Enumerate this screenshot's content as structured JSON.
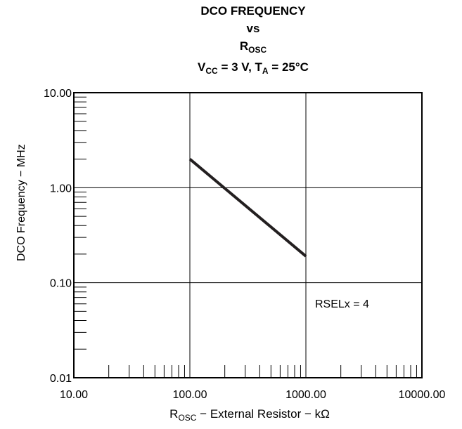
{
  "title": {
    "line1": "DCO FREQUENCY",
    "line2": "vs",
    "line3_main": "R",
    "line3_sub": "OSC",
    "line4_a": "V",
    "line4_a_sub": "CC",
    "line4_b": " = 3 V, T",
    "line4_b_sub": "A",
    "line4_c": " = 25°C"
  },
  "axes": {
    "ylabel": "DCO Frequency − MHz",
    "xlabel_main": "R",
    "xlabel_sub": "OSC",
    "xlabel_rest": " − External Resistor − kΩ"
  },
  "chart_data": {
    "type": "line",
    "x_scale": "log",
    "y_scale": "log",
    "xlim": [
      10,
      10000
    ],
    "ylim": [
      0.01,
      10
    ],
    "x_ticks": [
      "10.00",
      "100.00",
      "1000.00",
      "10000.00"
    ],
    "y_ticks": [
      "0.01",
      "0.10",
      "1.00",
      "10.00"
    ],
    "grid": true,
    "series": [
      {
        "x": [
          100,
          1000
        ],
        "y": [
          2.0,
          0.19
        ]
      }
    ],
    "annotation": "RSELx = 4",
    "line_color": "#231f20"
  }
}
